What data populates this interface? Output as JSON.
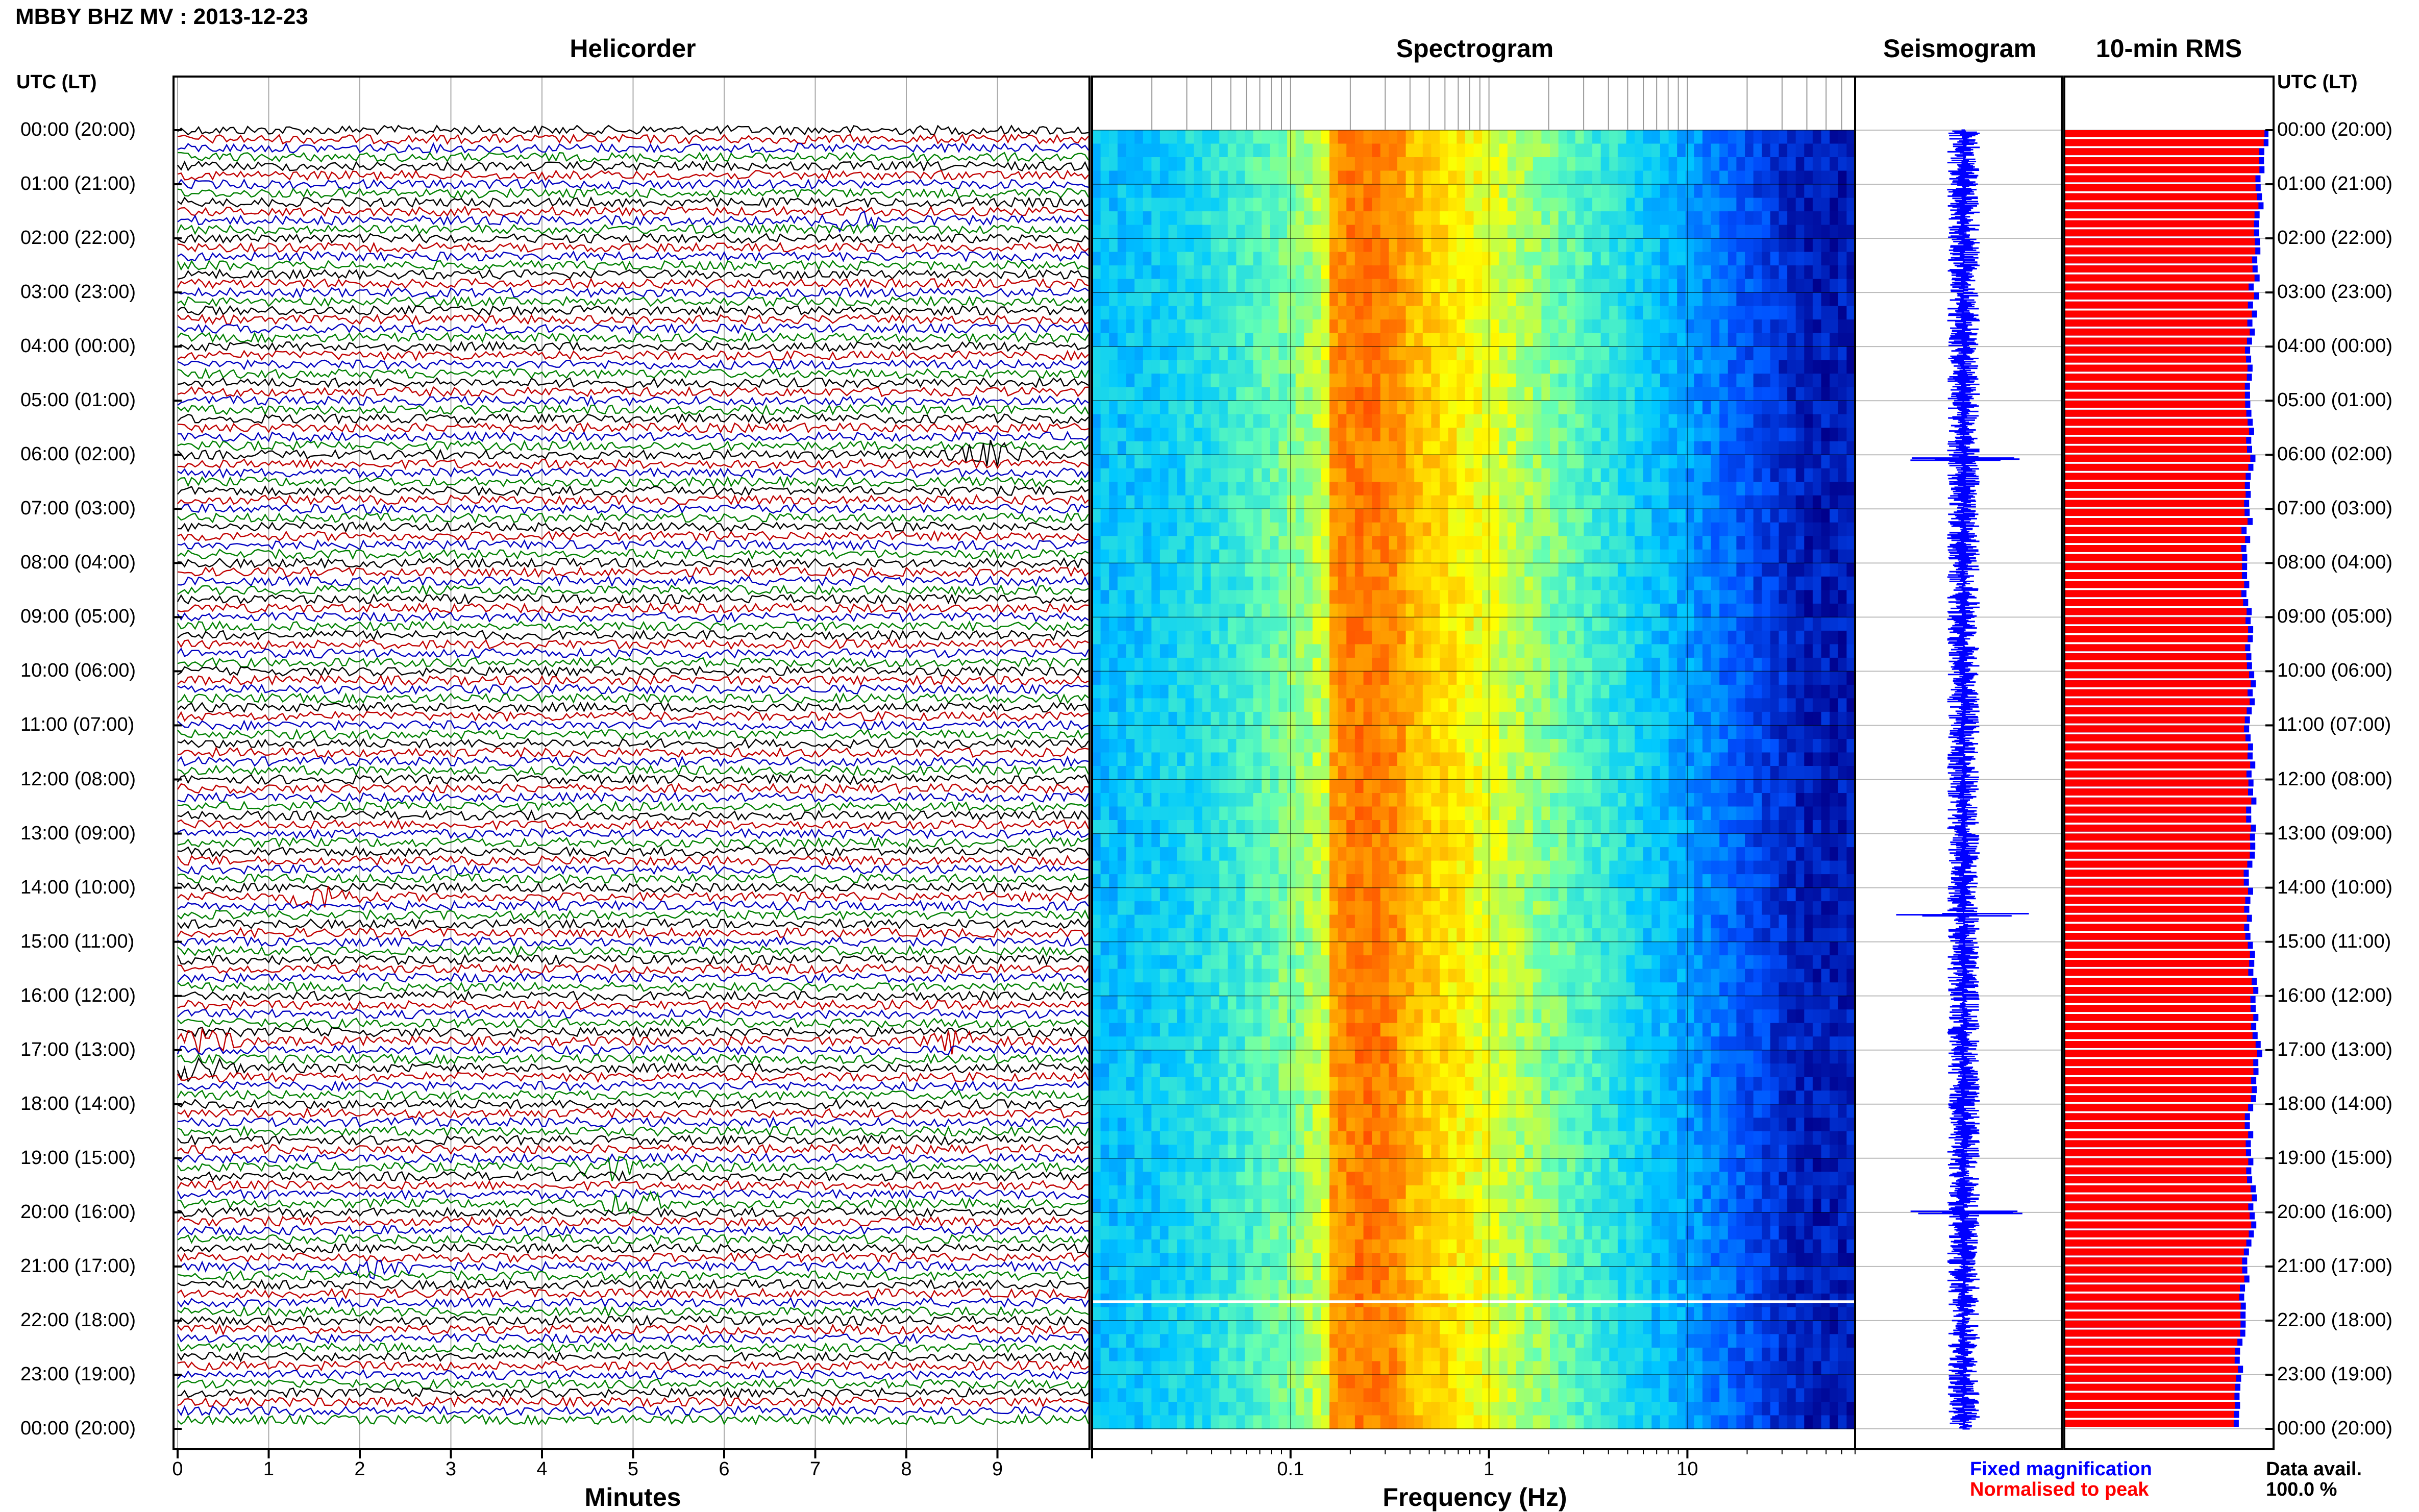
{
  "header": {
    "title": "MBBY BHZ MV : 2013-12-23",
    "utc_label_left": "UTC (LT)",
    "utc_label_right": "UTC (LT)"
  },
  "panels": {
    "helicorder": "Helicorder",
    "spectrogram": "Spectrogram",
    "seismogram": "Seismogram",
    "rms": "10-min RMS"
  },
  "time_labels": [
    "00:00 (20:00)",
    "01:00 (21:00)",
    "02:00 (22:00)",
    "03:00 (23:00)",
    "04:00 (00:00)",
    "05:00 (01:00)",
    "06:00 (02:00)",
    "07:00 (03:00)",
    "08:00 (04:00)",
    "09:00 (05:00)",
    "10:00 (06:00)",
    "11:00 (07:00)",
    "12:00 (08:00)",
    "13:00 (09:00)",
    "14:00 (10:00)",
    "15:00 (11:00)",
    "16:00 (12:00)",
    "17:00 (13:00)",
    "18:00 (14:00)",
    "19:00 (15:00)",
    "20:00 (16:00)",
    "21:00 (17:00)",
    "22:00 (18:00)",
    "23:00 (19:00)",
    "00:00 (20:00)"
  ],
  "helicorder_axis": {
    "xlabel": "Minutes",
    "ticks": [
      "0",
      "1",
      "2",
      "3",
      "4",
      "5",
      "6",
      "7",
      "8",
      "9"
    ],
    "trace_colors": [
      "#000000",
      "#c00000",
      "#0000c0",
      "#008000"
    ]
  },
  "spectrogram_axis": {
    "xlabel": "Frequency (Hz)",
    "ticks": [
      "0.1",
      "1",
      "10"
    ],
    "scale": "log",
    "xlim": [
      0.01,
      70
    ]
  },
  "legend": {
    "fixed": "Fixed magnification",
    "normalised": "Normalised to peak",
    "data_avail_label": "Data avail.",
    "data_avail_value": "100.0 %",
    "fixed_color": "#0000ff",
    "normalised_color": "#ff0000"
  },
  "chart_data": [
    {
      "type": "line",
      "title": "Helicorder",
      "xlabel": "Minutes",
      "xlim": [
        0,
        10
      ],
      "rows": 144,
      "row_minutes": 10,
      "notable_events_minutes": [
        {
          "time": "01:40",
          "minute": 7.4
        },
        {
          "time": "06:00",
          "minute": 8.9
        },
        {
          "time": "14:10",
          "minute": 1.6
        },
        {
          "time": "16:50",
          "minute": 0.3
        },
        {
          "time": "16:50",
          "minute": 8.6
        },
        {
          "time": "17:20",
          "minute": 0.2
        },
        {
          "time": "19:10",
          "minute": 4.7
        },
        {
          "time": "19:50",
          "minute": 5.0
        },
        {
          "time": "21:00",
          "minute": 2.2
        }
      ]
    },
    {
      "type": "heatmap",
      "title": "Spectrogram",
      "xlabel": "Frequency (Hz)",
      "x_scale": "log",
      "peak_band_hz": [
        0.15,
        0.4
      ],
      "colormap": [
        "#00008c",
        "#0050ff",
        "#00c8ff",
        "#64ffb4",
        "#ffff00",
        "#ff9600",
        "#ff2800"
      ]
    },
    {
      "type": "line",
      "title": "Seismogram",
      "spikes_utc": [
        "06:05",
        "14:30",
        "20:00"
      ]
    },
    {
      "type": "bar",
      "title": "10-min RMS",
      "series": [
        {
          "name": "Fixed magnification",
          "color": "#0000ff"
        },
        {
          "name": "Normalised to peak",
          "color": "#ff0000"
        }
      ],
      "hourly_values": [
        0.99,
        0.96,
        0.94,
        0.93,
        0.91,
        0.91,
        0.92,
        0.9,
        0.89,
        0.9,
        0.92,
        0.91,
        0.92,
        0.92,
        0.9,
        0.91,
        0.93,
        0.96,
        0.91,
        0.91,
        0.93,
        0.89,
        0.87,
        0.86,
        0.85
      ]
    }
  ]
}
